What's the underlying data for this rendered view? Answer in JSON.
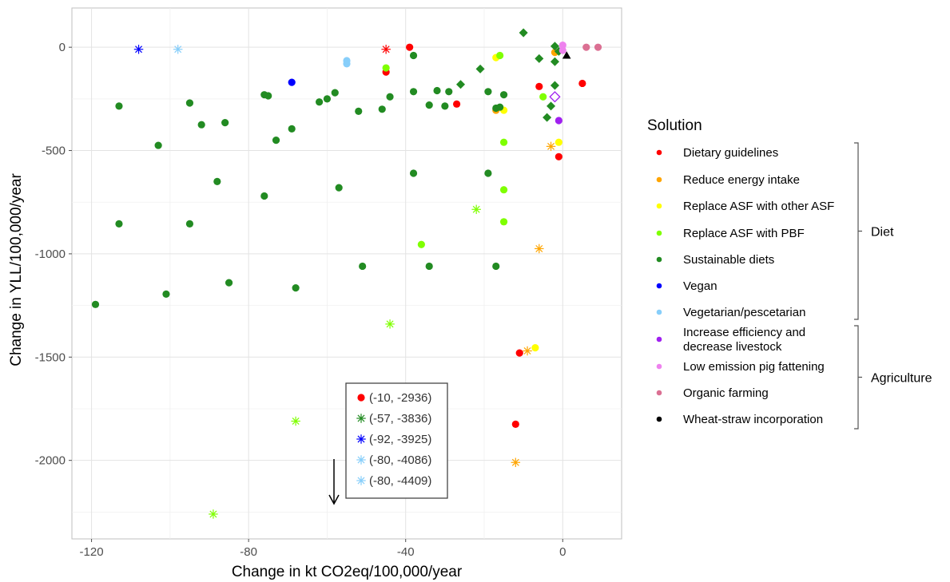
{
  "chart_data": {
    "type": "scatter",
    "title": "",
    "xlabel": "Change in kt CO2eq/100,000/year",
    "ylabel": "Change in YLL/100,000/year",
    "xlim": [
      -125,
      15
    ],
    "ylim": [
      -2380,
      190
    ],
    "xticks": [
      -120,
      -80,
      -40,
      0
    ],
    "yticks": [
      0,
      -500,
      -1000,
      -1500,
      -2000
    ],
    "grid": true,
    "legend": {
      "title": "Solution",
      "placement": "right",
      "entries": [
        {
          "key": "dietary",
          "label": "Dietary guidelines",
          "color": "#ff0000"
        },
        {
          "key": "reduce",
          "label": "Reduce energy intake",
          "color": "#ffa500"
        },
        {
          "key": "replace_asf",
          "label": "Replace ASF with other ASF",
          "color": "#ffff00"
        },
        {
          "key": "replace_pbf",
          "label": "Replace ASF with PBF",
          "color": "#7fff00"
        },
        {
          "key": "sustainable",
          "label": "Sustainable diets",
          "color": "#228b22"
        },
        {
          "key": "vegan",
          "label": "Vegan",
          "color": "#0000ff"
        },
        {
          "key": "vegetarian",
          "label": "Vegetarian/pescetarian",
          "color": "#87cefa"
        },
        {
          "key": "efficiency",
          "label": "Increase efficiency and decrease livestock",
          "color": "#a020f0"
        },
        {
          "key": "pig",
          "label": "Low emission pig fattening",
          "color": "#ee82ee"
        },
        {
          "key": "organic",
          "label": "Organic farming",
          "color": "#db7093"
        },
        {
          "key": "wheat",
          "label": "Wheat-straw incorporation",
          "color": "#000000"
        }
      ],
      "groups": [
        {
          "label": "Diet",
          "from": 0,
          "to": 6
        },
        {
          "label": "Agriculture",
          "from": 7,
          "to": 10
        }
      ]
    },
    "inset": {
      "entries": [
        {
          "label": "(-10, -2936)",
          "key": "dietary",
          "shape": "circle"
        },
        {
          "label": "(-57, -3836)",
          "key": "sustainable",
          "shape": "star"
        },
        {
          "label": "(-92, -3925)",
          "key": "vegan",
          "shape": "star"
        },
        {
          "label": "(-80, -4086)",
          "key": "vegetarian",
          "shape": "star"
        },
        {
          "label": "(-80, -4409)",
          "key": "vegetarian",
          "shape": "star"
        }
      ]
    },
    "series": [
      {
        "key": "dietary",
        "points": [
          {
            "x": -39,
            "y": 0,
            "shape": "circle"
          },
          {
            "x": -45,
            "y": -120,
            "shape": "circle"
          },
          {
            "x": -45,
            "y": -10,
            "shape": "star"
          },
          {
            "x": -27,
            "y": -275,
            "shape": "circle"
          },
          {
            "x": -6,
            "y": -190,
            "shape": "circle"
          },
          {
            "x": 5,
            "y": -175,
            "shape": "circle"
          },
          {
            "x": -1,
            "y": -530,
            "shape": "circle"
          },
          {
            "x": -11,
            "y": -1480,
            "shape": "circle"
          },
          {
            "x": -12,
            "y": -1825,
            "shape": "circle"
          }
        ]
      },
      {
        "key": "reduce",
        "points": [
          {
            "x": -2,
            "y": -25,
            "shape": "circle"
          },
          {
            "x": -17,
            "y": -305,
            "shape": "circle"
          },
          {
            "x": -3,
            "y": -480,
            "shape": "star"
          },
          {
            "x": -6,
            "y": -975,
            "shape": "star"
          },
          {
            "x": -9,
            "y": -1470,
            "shape": "star"
          },
          {
            "x": -12,
            "y": -2010,
            "shape": "star"
          }
        ]
      },
      {
        "key": "replace_asf",
        "points": [
          {
            "x": -17,
            "y": -50,
            "shape": "circle"
          },
          {
            "x": -15,
            "y": -305,
            "shape": "circle"
          },
          {
            "x": -1,
            "y": -460,
            "shape": "circle"
          },
          {
            "x": -7,
            "y": -1455,
            "shape": "circle"
          }
        ]
      },
      {
        "key": "replace_pbf",
        "points": [
          {
            "x": -45,
            "y": -100,
            "shape": "circle"
          },
          {
            "x": -16,
            "y": -40,
            "shape": "circle"
          },
          {
            "x": -5,
            "y": -240,
            "shape": "circle"
          },
          {
            "x": -15,
            "y": -460,
            "shape": "circle"
          },
          {
            "x": -15,
            "y": -690,
            "shape": "circle"
          },
          {
            "x": -15,
            "y": -845,
            "shape": "circle"
          },
          {
            "x": -36,
            "y": -955,
            "shape": "circle"
          },
          {
            "x": -22,
            "y": -785,
            "shape": "star"
          },
          {
            "x": -44,
            "y": -1340,
            "shape": "star"
          },
          {
            "x": -68,
            "y": -1810,
            "shape": "star"
          },
          {
            "x": -89,
            "y": -2260,
            "shape": "star"
          }
        ]
      },
      {
        "key": "sustainable",
        "points": [
          {
            "x": -38,
            "y": -40,
            "shape": "circle"
          },
          {
            "x": -69,
            "y": -395,
            "shape": "circle"
          },
          {
            "x": -113,
            "y": -285,
            "shape": "circle"
          },
          {
            "x": -95,
            "y": -270,
            "shape": "circle"
          },
          {
            "x": -92,
            "y": -375,
            "shape": "circle"
          },
          {
            "x": -86,
            "y": -365,
            "shape": "circle"
          },
          {
            "x": -103,
            "y": -475,
            "shape": "circle"
          },
          {
            "x": -76,
            "y": -230,
            "shape": "circle"
          },
          {
            "x": -75,
            "y": -235,
            "shape": "circle"
          },
          {
            "x": -73,
            "y": -450,
            "shape": "circle"
          },
          {
            "x": -62,
            "y": -265,
            "shape": "circle"
          },
          {
            "x": -60,
            "y": -250,
            "shape": "circle"
          },
          {
            "x": -58,
            "y": -220,
            "shape": "circle"
          },
          {
            "x": -52,
            "y": -310,
            "shape": "circle"
          },
          {
            "x": -46,
            "y": -300,
            "shape": "circle"
          },
          {
            "x": -44,
            "y": -240,
            "shape": "circle"
          },
          {
            "x": -38,
            "y": -215,
            "shape": "circle"
          },
          {
            "x": -34,
            "y": -280,
            "shape": "circle"
          },
          {
            "x": -32,
            "y": -210,
            "shape": "circle"
          },
          {
            "x": -30,
            "y": -285,
            "shape": "circle"
          },
          {
            "x": -29,
            "y": -215,
            "shape": "circle"
          },
          {
            "x": -19,
            "y": -215,
            "shape": "circle"
          },
          {
            "x": -17,
            "y": -295,
            "shape": "circle"
          },
          {
            "x": -15,
            "y": -230,
            "shape": "circle"
          },
          {
            "x": -16,
            "y": -290,
            "shape": "circle"
          },
          {
            "x": -88,
            "y": -650,
            "shape": "circle"
          },
          {
            "x": -76,
            "y": -720,
            "shape": "circle"
          },
          {
            "x": -57,
            "y": -680,
            "shape": "circle"
          },
          {
            "x": -38,
            "y": -610,
            "shape": "circle"
          },
          {
            "x": -19,
            "y": -610,
            "shape": "circle"
          },
          {
            "x": -113,
            "y": -855,
            "shape": "circle"
          },
          {
            "x": -95,
            "y": -855,
            "shape": "circle"
          },
          {
            "x": -51,
            "y": -1060,
            "shape": "circle"
          },
          {
            "x": -34,
            "y": -1060,
            "shape": "circle"
          },
          {
            "x": -17,
            "y": -1060,
            "shape": "circle"
          },
          {
            "x": -85,
            "y": -1140,
            "shape": "circle"
          },
          {
            "x": -68,
            "y": -1165,
            "shape": "circle"
          },
          {
            "x": -101,
            "y": -1195,
            "shape": "circle"
          },
          {
            "x": -119,
            "y": -1245,
            "shape": "circle"
          },
          {
            "x": -10,
            "y": 70,
            "shape": "diamond"
          },
          {
            "x": -2,
            "y": 5,
            "shape": "diamond"
          },
          {
            "x": -1,
            "y": -20,
            "shape": "diamond"
          },
          {
            "x": -6,
            "y": -55,
            "shape": "diamond"
          },
          {
            "x": -2,
            "y": -70,
            "shape": "diamond"
          },
          {
            "x": -21,
            "y": -105,
            "shape": "diamond"
          },
          {
            "x": -26,
            "y": -180,
            "shape": "diamond"
          },
          {
            "x": -2,
            "y": -185,
            "shape": "diamond"
          },
          {
            "x": -3,
            "y": -285,
            "shape": "diamond"
          },
          {
            "x": -4,
            "y": -340,
            "shape": "diamond"
          }
        ]
      },
      {
        "key": "vegan",
        "points": [
          {
            "x": -69,
            "y": -170,
            "shape": "circle"
          },
          {
            "x": -108,
            "y": -10,
            "shape": "star"
          }
        ]
      },
      {
        "key": "vegetarian",
        "points": [
          {
            "x": -55,
            "y": -65,
            "shape": "circle"
          },
          {
            "x": -55,
            "y": -80,
            "shape": "circle"
          },
          {
            "x": -98,
            "y": -10,
            "shape": "star"
          }
        ]
      },
      {
        "key": "efficiency",
        "points": [
          {
            "x": -1,
            "y": -355,
            "shape": "circle"
          },
          {
            "x": -2,
            "y": -240,
            "shape": "diamond-open"
          }
        ]
      },
      {
        "key": "pig",
        "points": [
          {
            "x": 0,
            "y": 10,
            "shape": "circle"
          },
          {
            "x": 0,
            "y": -15,
            "shape": "circle"
          }
        ]
      },
      {
        "key": "organic",
        "points": [
          {
            "x": 6,
            "y": 0,
            "shape": "circle"
          },
          {
            "x": 9,
            "y": 0,
            "shape": "circle"
          }
        ]
      },
      {
        "key": "wheat",
        "points": [
          {
            "x": 1,
            "y": -40,
            "shape": "triangle"
          }
        ]
      }
    ]
  }
}
